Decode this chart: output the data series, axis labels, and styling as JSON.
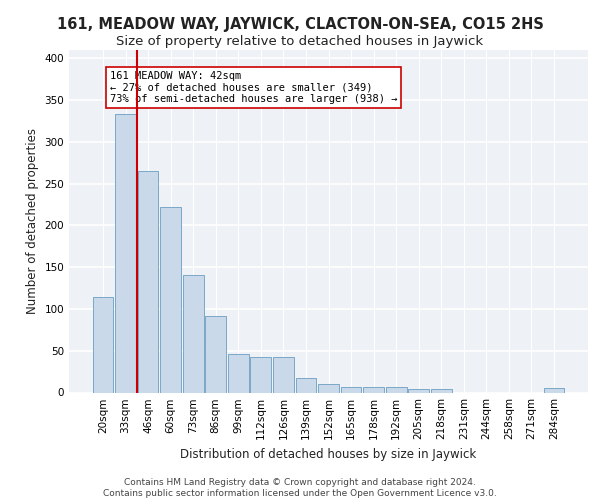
{
  "title": "161, MEADOW WAY, JAYWICK, CLACTON-ON-SEA, CO15 2HS",
  "subtitle": "Size of property relative to detached houses in Jaywick",
  "xlabel": "Distribution of detached houses by size in Jaywick",
  "ylabel": "Number of detached properties",
  "categories": [
    "20sqm",
    "33sqm",
    "46sqm",
    "60sqm",
    "73sqm",
    "86sqm",
    "99sqm",
    "112sqm",
    "126sqm",
    "139sqm",
    "152sqm",
    "165sqm",
    "178sqm",
    "192sqm",
    "205sqm",
    "218sqm",
    "231sqm",
    "244sqm",
    "258sqm",
    "271sqm",
    "284sqm"
  ],
  "values": [
    114,
    333,
    265,
    222,
    141,
    91,
    46,
    43,
    43,
    17,
    10,
    7,
    6,
    7,
    4,
    4,
    0,
    0,
    0,
    0,
    5
  ],
  "bar_color": "#c9d9e9",
  "bar_edge_color": "#7aa8c8",
  "marker_line_color": "#cc0000",
  "annotation_text": "161 MEADOW WAY: 42sqm\n← 27% of detached houses are smaller (349)\n73% of semi-detached houses are larger (938) →",
  "annotation_box_color": "white",
  "annotation_box_edge": "#cc0000",
  "ylim": [
    0,
    410
  ],
  "yticks": [
    0,
    50,
    100,
    150,
    200,
    250,
    300,
    350,
    400
  ],
  "background_color": "#eef2f7",
  "grid_color": "white",
  "footer": "Contains HM Land Registry data © Crown copyright and database right 2024.\nContains public sector information licensed under the Open Government Licence v3.0.",
  "title_fontsize": 10.5,
  "subtitle_fontsize": 9.5,
  "xlabel_fontsize": 8.5,
  "ylabel_fontsize": 8.5,
  "tick_fontsize": 7.5,
  "annotation_fontsize": 7.5,
  "footer_fontsize": 6.5
}
